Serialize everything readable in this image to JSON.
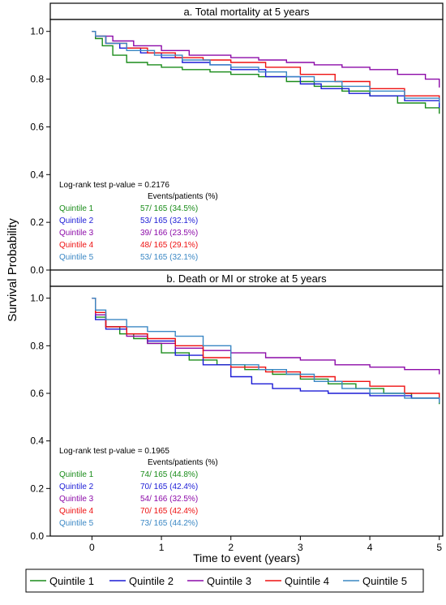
{
  "y_axis_label": "Survival Probability",
  "x_axis_label": "Time to event (years)",
  "legend": [
    {
      "label": "Quintile 1",
      "color": "#1a8c1a"
    },
    {
      "label": "Quintile 2",
      "color": "#1c1cd6"
    },
    {
      "label": "Quintile 3",
      "color": "#8c0aa8"
    },
    {
      "label": "Quintile 4",
      "color": "#ee1111"
    },
    {
      "label": "Quintile 5",
      "color": "#3a87c4"
    }
  ],
  "chart_data": [
    {
      "type": "line",
      "title": "a. Total mortality at 5 years",
      "xlabel": "Time to event (years)",
      "ylabel": "Survival Probability",
      "xlim": [
        -0.6,
        5.05
      ],
      "ylim": [
        0.0,
        1.05
      ],
      "x_ticks": [
        "0",
        "1",
        "2",
        "3",
        "4",
        "5"
      ],
      "y_ticks": [
        "0.0",
        "0.2",
        "0.4",
        "0.6",
        "0.8",
        "1.0"
      ],
      "logrank": "Log-rank test p-value = 0.2176",
      "table_header": "Events/patients (%)",
      "table": [
        {
          "name": "Quintile 1",
          "value": "57/ 165 (34.5%)"
        },
        {
          "name": "Quintile 2",
          "value": "53/ 165 (32.1%)"
        },
        {
          "name": "Quintile 3",
          "value": "39/ 166 (23.5%)"
        },
        {
          "name": "Quintile 4",
          "value": "48/ 165 (29.1%)"
        },
        {
          "name": "Quintile 5",
          "value": "53/ 165 (32.1%)"
        }
      ],
      "series": [
        {
          "name": "Quintile 1",
          "color": "#1a8c1a",
          "x": [
            0,
            0.05,
            0.15,
            0.3,
            0.5,
            0.8,
            1.0,
            1.3,
            1.7,
            2.0,
            2.4,
            2.8,
            3.2,
            3.6,
            4.0,
            4.4,
            4.8,
            5.0
          ],
          "y": [
            1.0,
            0.97,
            0.94,
            0.9,
            0.87,
            0.86,
            0.85,
            0.84,
            0.83,
            0.82,
            0.81,
            0.79,
            0.77,
            0.75,
            0.73,
            0.7,
            0.68,
            0.655
          ]
        },
        {
          "name": "Quintile 2",
          "color": "#1c1cd6",
          "x": [
            0,
            0.05,
            0.2,
            0.4,
            0.7,
            1.0,
            1.3,
            1.7,
            2.0,
            2.5,
            3.0,
            3.3,
            3.7,
            4.0,
            4.5,
            5.0
          ],
          "y": [
            1.0,
            0.98,
            0.95,
            0.93,
            0.91,
            0.89,
            0.87,
            0.86,
            0.84,
            0.81,
            0.78,
            0.76,
            0.74,
            0.73,
            0.71,
            0.68
          ]
        },
        {
          "name": "Quintile 3",
          "color": "#8c0aa8",
          "x": [
            0,
            0.05,
            0.3,
            0.6,
            1.0,
            1.4,
            2.0,
            2.4,
            2.8,
            3.2,
            3.6,
            4.0,
            4.4,
            4.8,
            5.0
          ],
          "y": [
            1.0,
            0.98,
            0.96,
            0.94,
            0.92,
            0.9,
            0.89,
            0.88,
            0.87,
            0.86,
            0.85,
            0.84,
            0.82,
            0.8,
            0.765
          ]
        },
        {
          "name": "Quintile 4",
          "color": "#ee1111",
          "x": [
            0,
            0.05,
            0.2,
            0.5,
            0.8,
            1.2,
            1.6,
            2.0,
            2.5,
            3.0,
            3.5,
            4.0,
            4.5,
            5.0
          ],
          "y": [
            1.0,
            0.98,
            0.95,
            0.93,
            0.91,
            0.89,
            0.88,
            0.87,
            0.85,
            0.82,
            0.79,
            0.76,
            0.73,
            0.71
          ]
        },
        {
          "name": "Quintile 5",
          "color": "#3a87c4",
          "x": [
            0,
            0.05,
            0.2,
            0.5,
            0.9,
            1.3,
            1.7,
            2.0,
            2.4,
            2.8,
            3.2,
            3.6,
            4.0,
            4.5,
            5.0
          ],
          "y": [
            1.0,
            0.98,
            0.95,
            0.92,
            0.9,
            0.88,
            0.86,
            0.85,
            0.83,
            0.81,
            0.79,
            0.77,
            0.75,
            0.72,
            0.7
          ]
        }
      ]
    },
    {
      "type": "line",
      "title": "b. Death or MI or stroke at 5 years",
      "xlabel": "Time to event (years)",
      "ylabel": "Survival Probability",
      "xlim": [
        -0.6,
        5.05
      ],
      "ylim": [
        0.0,
        1.05
      ],
      "x_ticks": [
        "0",
        "1",
        "2",
        "3",
        "4",
        "5"
      ],
      "y_ticks": [
        "0.0",
        "0.2",
        "0.4",
        "0.6",
        "0.8",
        "1.0"
      ],
      "logrank": "Log-rank test p-value = 0.1965",
      "table_header": "Events/patients (%)",
      "table": [
        {
          "name": "Quintile 1",
          "value": "74/ 165 (44.8%)"
        },
        {
          "name": "Quintile 2",
          "value": "70/ 165 (42.4%)"
        },
        {
          "name": "Quintile 3",
          "value": "54/ 166 (32.5%)"
        },
        {
          "name": "Quintile 4",
          "value": "70/ 165 (42.4%)"
        },
        {
          "name": "Quintile 5",
          "value": "73/ 165 (44.2%)"
        }
      ],
      "series": [
        {
          "name": "Quintile 1",
          "color": "#1a8c1a",
          "x": [
            0,
            0.05,
            0.2,
            0.4,
            0.6,
            0.8,
            1.0,
            1.4,
            1.8,
            2.2,
            2.6,
            3.0,
            3.4,
            3.8,
            4.2,
            4.6,
            5.0
          ],
          "y": [
            1.0,
            0.92,
            0.88,
            0.85,
            0.83,
            0.81,
            0.77,
            0.74,
            0.72,
            0.7,
            0.68,
            0.66,
            0.64,
            0.62,
            0.6,
            0.58,
            0.555
          ]
        },
        {
          "name": "Quintile 2",
          "color": "#1c1cd6",
          "x": [
            0,
            0.05,
            0.2,
            0.5,
            0.8,
            1.2,
            1.6,
            2.0,
            2.3,
            2.6,
            3.0,
            3.4,
            4.0,
            4.6,
            5.0
          ],
          "y": [
            1.0,
            0.91,
            0.87,
            0.85,
            0.82,
            0.76,
            0.72,
            0.67,
            0.64,
            0.62,
            0.61,
            0.6,
            0.59,
            0.58,
            0.57
          ]
        },
        {
          "name": "Quintile 3",
          "color": "#8c0aa8",
          "x": [
            0,
            0.05,
            0.2,
            0.5,
            0.8,
            1.2,
            1.6,
            2.0,
            2.5,
            3.0,
            3.5,
            4.0,
            4.5,
            5.0
          ],
          "y": [
            1.0,
            0.93,
            0.88,
            0.84,
            0.81,
            0.79,
            0.78,
            0.77,
            0.75,
            0.74,
            0.72,
            0.71,
            0.7,
            0.68
          ]
        },
        {
          "name": "Quintile 4",
          "color": "#ee1111",
          "x": [
            0,
            0.05,
            0.2,
            0.5,
            0.8,
            1.2,
            1.6,
            2.0,
            2.5,
            3.0,
            3.5,
            4.0,
            4.5,
            5.0
          ],
          "y": [
            1.0,
            0.94,
            0.88,
            0.85,
            0.83,
            0.8,
            0.75,
            0.71,
            0.69,
            0.67,
            0.65,
            0.63,
            0.6,
            0.575
          ]
        },
        {
          "name": "Quintile 5",
          "color": "#3a87c4",
          "x": [
            0,
            0.05,
            0.2,
            0.5,
            0.8,
            1.2,
            1.6,
            2.0,
            2.4,
            2.8,
            3.2,
            3.6,
            4.0,
            4.5,
            5.0
          ],
          "y": [
            1.0,
            0.95,
            0.91,
            0.88,
            0.86,
            0.84,
            0.8,
            0.72,
            0.7,
            0.68,
            0.65,
            0.62,
            0.6,
            0.58,
            0.56
          ]
        }
      ]
    }
  ]
}
